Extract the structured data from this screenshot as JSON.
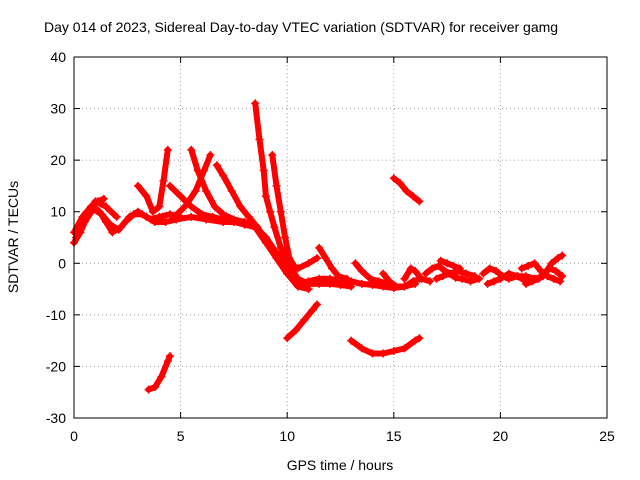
{
  "chart_data": {
    "type": "scatter",
    "title": "Day 014 of 2023, Sidereal Day-to-day VTEC variation (SDTVAR) for receiver gamg",
    "xlabel": "GPS time / hours",
    "ylabel": "SDTVAR / TECUs",
    "xlim": [
      0,
      25
    ],
    "ylim": [
      -30,
      40
    ],
    "xticks": [
      "0",
      "5",
      "10",
      "15",
      "20",
      "25"
    ],
    "yticks": [
      "-30",
      "-20",
      "-10",
      "0",
      "10",
      "20",
      "30",
      "40"
    ],
    "grid": true,
    "marker": "+",
    "color": "#ff0000",
    "series": [
      {
        "name": "trace-1",
        "points": [
          [
            0,
            4
          ],
          [
            0.3,
            6
          ],
          [
            0.6,
            9
          ],
          [
            0.9,
            11
          ],
          [
            1.2,
            10
          ],
          [
            1.5,
            8
          ],
          [
            1.8,
            6
          ],
          [
            2.2,
            7
          ],
          [
            2.6,
            9
          ],
          [
            3.0,
            10
          ],
          [
            3.4,
            9
          ],
          [
            3.8,
            8
          ],
          [
            4.3,
            8
          ],
          [
            4.8,
            8.5
          ],
          [
            5.5,
            9
          ],
          [
            6.2,
            8.5
          ],
          [
            7.0,
            8
          ],
          [
            8.0,
            8
          ],
          [
            8.5,
            7
          ],
          [
            9.0,
            4
          ],
          [
            9.5,
            1
          ],
          [
            10.0,
            -2
          ],
          [
            10.5,
            -4
          ],
          [
            11.0,
            -3.5
          ],
          [
            11.5,
            -3
          ],
          [
            12.0,
            -3
          ],
          [
            12.5,
            -3.5
          ],
          [
            13.0,
            -3.5
          ],
          [
            13.5,
            -4
          ],
          [
            14.0,
            -4.2
          ],
          [
            14.5,
            -4.5
          ],
          [
            15.0,
            -4.8
          ],
          [
            15.5,
            -4.5
          ],
          [
            16.0,
            -4
          ]
        ]
      },
      {
        "name": "trace-2",
        "points": [
          [
            0,
            6
          ],
          [
            0.4,
            9
          ],
          [
            0.8,
            11
          ],
          [
            1.1,
            12
          ],
          [
            1.4,
            12.5
          ]
        ]
      },
      {
        "name": "trace-3",
        "points": [
          [
            0.1,
            5
          ],
          [
            0.5,
            8
          ],
          [
            0.9,
            10.5
          ],
          [
            1.3,
            9.5
          ],
          [
            1.7,
            7.5
          ],
          [
            2.1,
            6.5
          ]
        ]
      },
      {
        "name": "trace-4",
        "points": [
          [
            2.4,
            8
          ],
          [
            2.8,
            9.5
          ],
          [
            3.2,
            9.5
          ],
          [
            3.6,
            8.5
          ],
          [
            4.0,
            9
          ],
          [
            4.5,
            9.5
          ],
          [
            5.0,
            9
          ]
        ]
      },
      {
        "name": "trace-5",
        "points": [
          [
            1.0,
            12
          ],
          [
            1.5,
            11
          ],
          [
            2.0,
            9
          ]
        ]
      },
      {
        "name": "trace-6",
        "points": [
          [
            3.0,
            15
          ],
          [
            3.4,
            13
          ],
          [
            3.7,
            10
          ],
          [
            4.0,
            11
          ],
          [
            4.2,
            16
          ],
          [
            4.4,
            22
          ]
        ]
      },
      {
        "name": "trace-7",
        "points": [
          [
            4.5,
            15
          ],
          [
            5.0,
            13
          ],
          [
            5.5,
            11
          ],
          [
            6.0,
            9.5
          ],
          [
            6.5,
            9
          ],
          [
            7.0,
            8.5
          ],
          [
            7.5,
            8
          ],
          [
            8.0,
            7.5
          ],
          [
            8.5,
            7
          ],
          [
            9.0,
            5
          ],
          [
            9.5,
            2
          ],
          [
            10.0,
            0
          ]
        ]
      },
      {
        "name": "trace-8",
        "points": [
          [
            4.7,
            9
          ],
          [
            5.2,
            11
          ],
          [
            5.7,
            14
          ],
          [
            6.1,
            18
          ],
          [
            6.4,
            21
          ]
        ]
      },
      {
        "name": "trace-9",
        "points": [
          [
            5.5,
            22
          ],
          [
            5.8,
            18
          ],
          [
            6.2,
            14
          ],
          [
            6.6,
            11
          ],
          [
            7.0,
            9.5
          ],
          [
            7.5,
            8.5
          ],
          [
            8.0,
            8
          ],
          [
            8.5,
            7
          ],
          [
            9.0,
            5
          ],
          [
            9.5,
            1
          ],
          [
            10.0,
            -2
          ],
          [
            10.5,
            -4.5
          ],
          [
            11.0,
            -5
          ]
        ]
      },
      {
        "name": "trace-10",
        "points": [
          [
            6.7,
            19
          ],
          [
            7.0,
            17
          ],
          [
            7.4,
            14
          ],
          [
            7.8,
            11
          ],
          [
            8.2,
            9
          ],
          [
            8.6,
            7
          ],
          [
            9.0,
            4.5
          ],
          [
            9.5,
            1
          ],
          [
            10.0,
            -2
          ],
          [
            10.5,
            -4
          ]
        ]
      },
      {
        "name": "trace-11",
        "points": [
          [
            8.5,
            31
          ],
          [
            8.7,
            24
          ],
          [
            8.9,
            18
          ],
          [
            9.0,
            13
          ],
          [
            9.2,
            10
          ],
          [
            9.4,
            7
          ],
          [
            9.7,
            3
          ],
          [
            10.0,
            0
          ],
          [
            10.5,
            -3
          ],
          [
            11.0,
            -4
          ],
          [
            11.5,
            -4
          ],
          [
            12.0,
            -4
          ],
          [
            12.5,
            -4.2
          ],
          [
            13.0,
            -4.5
          ]
        ]
      },
      {
        "name": "trace-12",
        "points": [
          [
            9.3,
            21
          ],
          [
            9.5,
            15
          ],
          [
            9.7,
            10
          ],
          [
            9.9,
            5
          ],
          [
            10.1,
            1
          ],
          [
            10.4,
            -1
          ]
        ]
      },
      {
        "name": "trace-13",
        "points": [
          [
            3.5,
            -24.5
          ],
          [
            3.8,
            -24
          ],
          [
            4.1,
            -22
          ],
          [
            4.4,
            -19
          ],
          [
            4.5,
            -18
          ]
        ]
      },
      {
        "name": "trace-14",
        "points": [
          [
            10.0,
            -14.5
          ],
          [
            10.4,
            -13
          ],
          [
            10.8,
            -11
          ],
          [
            11.2,
            -9
          ],
          [
            11.4,
            -8
          ]
        ]
      },
      {
        "name": "trace-15",
        "points": [
          [
            10.5,
            -1
          ],
          [
            11.0,
            0
          ],
          [
            11.4,
            1
          ]
        ]
      },
      {
        "name": "trace-16",
        "points": [
          [
            11.5,
            3
          ],
          [
            11.8,
            1
          ],
          [
            12.1,
            -1
          ],
          [
            12.4,
            -2.5
          ],
          [
            12.8,
            -3
          ]
        ]
      },
      {
        "name": "trace-17",
        "points": [
          [
            13.0,
            -15
          ],
          [
            13.5,
            -16.5
          ],
          [
            14.0,
            -17.5
          ],
          [
            14.5,
            -17.5
          ],
          [
            15.0,
            -17
          ],
          [
            15.5,
            -16.5
          ],
          [
            16.0,
            -15
          ],
          [
            16.2,
            -14.5
          ]
        ]
      },
      {
        "name": "trace-18",
        "points": [
          [
            15.0,
            16.5
          ],
          [
            15.3,
            15.5
          ],
          [
            15.6,
            14
          ],
          [
            15.9,
            13
          ],
          [
            16.2,
            12
          ]
        ]
      },
      {
        "name": "trace-19",
        "points": [
          [
            13.2,
            0
          ],
          [
            13.5,
            -1.5
          ],
          [
            13.9,
            -3
          ],
          [
            14.3,
            -3.5
          ],
          [
            14.7,
            -4
          ]
        ]
      },
      {
        "name": "trace-20",
        "points": [
          [
            14.5,
            -2
          ],
          [
            14.8,
            -3.5
          ],
          [
            15.1,
            -4.5
          ],
          [
            15.5,
            -4.5
          ],
          [
            15.9,
            -3.5
          ],
          [
            16.2,
            -3
          ]
        ]
      },
      {
        "name": "trace-21",
        "points": [
          [
            15.5,
            -3
          ],
          [
            15.8,
            -1
          ],
          [
            16.0,
            -1.5
          ],
          [
            16.3,
            -3
          ],
          [
            16.7,
            -3.5
          ]
        ]
      },
      {
        "name": "trace-22",
        "points": [
          [
            16.5,
            -2
          ],
          [
            16.8,
            -1
          ],
          [
            17.1,
            -0.5
          ],
          [
            17.4,
            -1.5
          ],
          [
            17.7,
            -2
          ],
          [
            18.0,
            -1.5
          ],
          [
            18.4,
            -2
          ],
          [
            18.8,
            -2.5
          ]
        ]
      },
      {
        "name": "trace-23",
        "points": [
          [
            17.0,
            -3
          ],
          [
            17.3,
            -2.5
          ],
          [
            17.6,
            -2
          ],
          [
            17.9,
            -2.8
          ],
          [
            18.2,
            -3
          ],
          [
            18.6,
            -3.5
          ],
          [
            19.0,
            -3
          ]
        ]
      },
      {
        "name": "trace-24",
        "points": [
          [
            17.2,
            0.5
          ],
          [
            17.5,
            0
          ],
          [
            17.8,
            -0.5
          ],
          [
            18.1,
            -1
          ]
        ]
      },
      {
        "name": "trace-25",
        "points": [
          [
            19.2,
            -2
          ],
          [
            19.5,
            -1
          ],
          [
            19.8,
            -1.5
          ],
          [
            20.1,
            -2.5
          ],
          [
            20.4,
            -3
          ],
          [
            20.8,
            -2.5
          ],
          [
            21.2,
            -2.5
          ],
          [
            21.6,
            -3
          ]
        ]
      },
      {
        "name": "trace-26",
        "points": [
          [
            19.4,
            -4
          ],
          [
            19.7,
            -3.5
          ],
          [
            20.0,
            -3
          ],
          [
            20.4,
            -2
          ],
          [
            20.8,
            -2.5
          ],
          [
            21.2,
            -3.5
          ],
          [
            21.6,
            -3
          ],
          [
            22.0,
            -2.5
          ]
        ]
      },
      {
        "name": "trace-27",
        "points": [
          [
            21.0,
            -1
          ],
          [
            21.3,
            -0.5
          ],
          [
            21.6,
            0
          ],
          [
            21.9,
            -1.5
          ],
          [
            22.2,
            -2.5
          ],
          [
            22.5,
            -3
          ],
          [
            22.8,
            -3.5
          ]
        ]
      },
      {
        "name": "trace-28",
        "points": [
          [
            21.2,
            -4
          ],
          [
            21.5,
            -3.5
          ],
          [
            21.8,
            -3
          ],
          [
            22.1,
            -2
          ],
          [
            22.4,
            0
          ],
          [
            22.7,
            1
          ],
          [
            22.9,
            1.5
          ]
        ]
      },
      {
        "name": "trace-29",
        "points": [
          [
            22.0,
            -2
          ],
          [
            22.3,
            -1
          ],
          [
            22.6,
            -1.5
          ],
          [
            22.9,
            -2.5
          ]
        ]
      }
    ]
  }
}
